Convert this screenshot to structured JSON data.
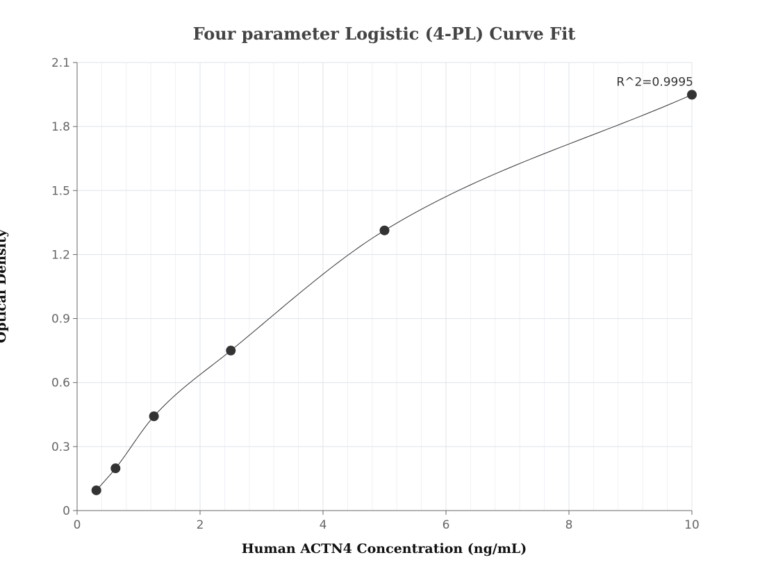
{
  "chart_data": {
    "type": "scatter",
    "title": "Four parameter Logistic (4-PL) Curve Fit",
    "xlabel": "Human ACTN4 Concentration (ng/mL)",
    "ylabel": "Optical Density",
    "xlim": [
      0,
      10
    ],
    "ylim": [
      0,
      2.1
    ],
    "x_ticks": [
      0,
      2,
      4,
      6,
      8,
      10
    ],
    "y_ticks": [
      0,
      0.3,
      0.6,
      0.9,
      1.2,
      1.5,
      1.8,
      2.1
    ],
    "x_tick_labels": [
      "0",
      "2",
      "4",
      "6",
      "8",
      "10"
    ],
    "y_tick_labels": [
      "0",
      "0.3",
      "0.6",
      "0.9",
      "1.2",
      "1.5",
      "1.8",
      "2.1"
    ],
    "x_minor_step": 0.4,
    "grid": true,
    "series": [
      {
        "type": "scatter",
        "x": [
          0.313,
          0.625,
          1.25,
          2.5,
          5,
          10
        ],
        "y": [
          0.095,
          0.198,
          0.442,
          0.75,
          1.313,
          1.949
        ]
      },
      {
        "type": "line",
        "fit": "4PL"
      }
    ],
    "annotations": [
      {
        "text": "R^2=0.9995",
        "x": 10,
        "y": 1.949
      }
    ],
    "colors": {
      "marker": "#333333",
      "curve": "#333333",
      "grid_major": "#dde3ea",
      "grid_minor": "#eef1f5",
      "axis": "#666666"
    }
  }
}
